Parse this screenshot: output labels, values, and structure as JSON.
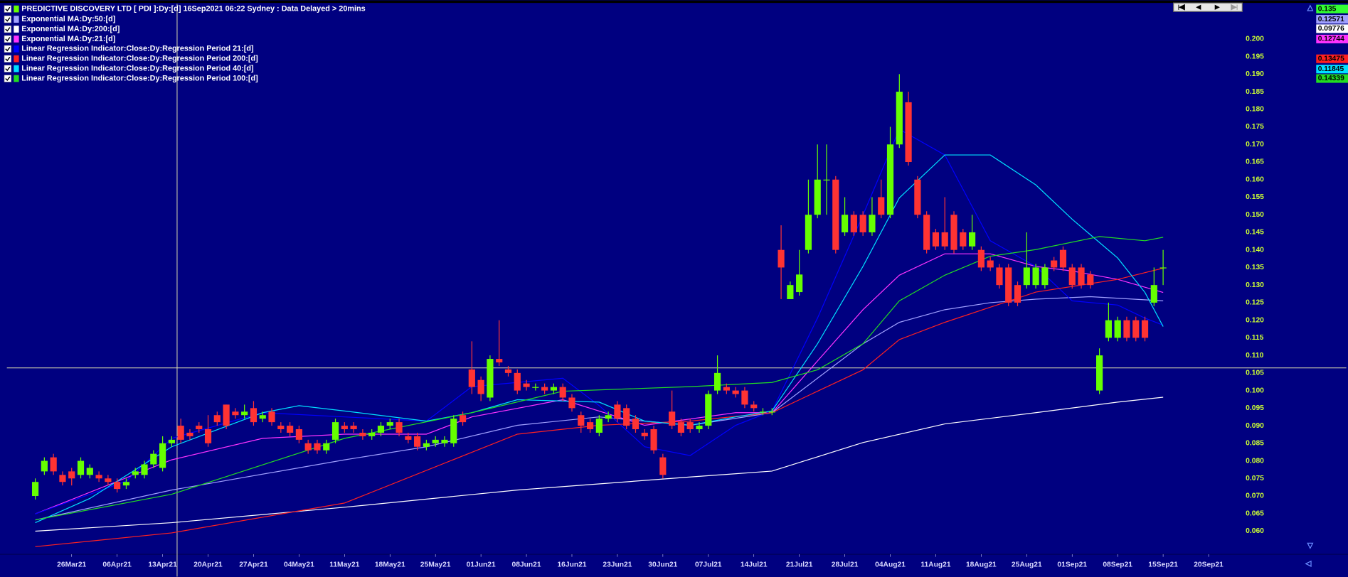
{
  "chart_data": {
    "type": "candlestick",
    "title": "PREDICTIVE DISCOVERY LTD [ PDI ]:Dy:[d] 16Sep2021 06:22 Sydney : Data Delayed > 20mins",
    "title_color": "#66ff00",
    "up_color": "#66ff00",
    "down_color": "#ff3333",
    "open": [
      0.07,
      0.077,
      0.081,
      0.076,
      0.077,
      0.076,
      0.076,
      0.076,
      0.075,
      0.074,
      0.073,
      0.076,
      0.076,
      0.079,
      0.078,
      0.085,
      0.09,
      0.088,
      0.09,
      0.089,
      0.093,
      0.096,
      0.094,
      0.093,
      0.095,
      0.092,
      0.094,
      0.09,
      0.09,
      0.089,
      0.085,
      0.085,
      0.083,
      0.086,
      0.09,
      0.09,
      0.088,
      0.087,
      0.088,
      0.09,
      0.091,
      0.087,
      0.087,
      0.084,
      0.085,
      0.085,
      0.085,
      0.093,
      0.106,
      0.103,
      0.098,
      0.109,
      0.106,
      0.105,
      0.102,
      0.101,
      0.101,
      0.1,
      0.101,
      0.098,
      0.093,
      0.091,
      0.088,
      0.092,
      0.096,
      0.095,
      0.092,
      0.088,
      0.089,
      0.081,
      0.094,
      0.091,
      0.091,
      0.089,
      0.09,
      0.1,
      0.101,
      0.1,
      0.1,
      0.096,
      0.094,
      0.094,
      0.14,
      0.126,
      0.128,
      0.14,
      0.15,
      0.16,
      0.16,
      0.145,
      0.15,
      0.15,
      0.145,
      0.155,
      0.15,
      0.17,
      0.182,
      0.16,
      0.15,
      0.145,
      0.145,
      0.15,
      0.145,
      0.141,
      0.14,
      0.137,
      0.135,
      0.135,
      0.13,
      0.13,
      0.13,
      0.13,
      0.137,
      0.14,
      0.135,
      0.135,
      0.133,
      0.1,
      0.115,
      0.115,
      0.12,
      0.12,
      0.12,
      0.125,
      0.135
    ],
    "high": [
      0.075,
      0.081,
      0.082,
      0.077,
      0.078,
      0.081,
      0.079,
      0.077,
      0.076,
      0.075,
      0.075,
      0.078,
      0.08,
      0.083,
      0.087,
      0.087,
      0.092,
      0.089,
      0.091,
      0.093,
      0.094,
      0.096,
      0.095,
      0.096,
      0.097,
      0.094,
      0.095,
      0.091,
      0.091,
      0.09,
      0.086,
      0.086,
      0.086,
      0.092,
      0.091,
      0.091,
      0.089,
      0.089,
      0.091,
      0.092,
      0.092,
      0.088,
      0.088,
      0.086,
      0.087,
      0.087,
      0.093,
      0.094,
      0.114,
      0.104,
      0.11,
      0.12,
      0.107,
      0.106,
      0.103,
      0.102,
      0.102,
      0.102,
      0.102,
      0.099,
      0.094,
      0.092,
      0.093,
      0.094,
      0.097,
      0.096,
      0.093,
      0.089,
      0.09,
      0.082,
      0.1,
      0.092,
      0.092,
      0.091,
      0.1,
      0.11,
      0.102,
      0.101,
      0.101,
      0.097,
      0.095,
      0.095,
      0.147,
      0.131,
      0.14,
      0.16,
      0.17,
      0.17,
      0.161,
      0.155,
      0.151,
      0.151,
      0.155,
      0.16,
      0.175,
      0.19,
      0.185,
      0.161,
      0.151,
      0.146,
      0.155,
      0.151,
      0.146,
      0.15,
      0.141,
      0.138,
      0.136,
      0.136,
      0.131,
      0.145,
      0.136,
      0.136,
      0.138,
      0.141,
      0.136,
      0.136,
      0.134,
      0.112,
      0.125,
      0.121,
      0.121,
      0.121,
      0.121,
      0.135,
      0.14
    ],
    "low": [
      0.069,
      0.076,
      0.076,
      0.073,
      0.073,
      0.075,
      0.075,
      0.074,
      0.073,
      0.071,
      0.072,
      0.075,
      0.075,
      0.078,
      0.077,
      0.084,
      0.085,
      0.086,
      0.088,
      0.084,
      0.09,
      0.089,
      0.092,
      0.092,
      0.09,
      0.091,
      0.09,
      0.088,
      0.087,
      0.085,
      0.082,
      0.082,
      0.082,
      0.085,
      0.088,
      0.088,
      0.086,
      0.086,
      0.087,
      0.089,
      0.087,
      0.085,
      0.083,
      0.083,
      0.084,
      0.084,
      0.084,
      0.09,
      0.099,
      0.097,
      0.097,
      0.107,
      0.104,
      0.099,
      0.1,
      0.1,
      0.099,
      0.099,
      0.097,
      0.094,
      0.088,
      0.088,
      0.087,
      0.091,
      0.091,
      0.089,
      0.088,
      0.086,
      0.082,
      0.075,
      0.089,
      0.087,
      0.088,
      0.088,
      0.089,
      0.099,
      0.099,
      0.098,
      0.095,
      0.094,
      0.093,
      0.093,
      0.126,
      0.126,
      0.127,
      0.139,
      0.149,
      0.15,
      0.139,
      0.144,
      0.144,
      0.144,
      0.144,
      0.149,
      0.149,
      0.169,
      0.164,
      0.149,
      0.139,
      0.14,
      0.14,
      0.139,
      0.14,
      0.14,
      0.134,
      0.134,
      0.129,
      0.124,
      0.124,
      0.129,
      0.129,
      0.129,
      0.134,
      0.134,
      0.129,
      0.129,
      0.129,
      0.099,
      0.114,
      0.114,
      0.114,
      0.114,
      0.114,
      0.124,
      0.13
    ],
    "close": [
      0.074,
      0.08,
      0.077,
      0.074,
      0.075,
      0.08,
      0.078,
      0.075,
      0.074,
      0.072,
      0.074,
      0.077,
      0.079,
      0.082,
      0.085,
      0.086,
      0.086,
      0.087,
      0.089,
      0.085,
      0.091,
      0.09,
      0.093,
      0.094,
      0.091,
      0.093,
      0.091,
      0.089,
      0.088,
      0.086,
      0.083,
      0.083,
      0.085,
      0.091,
      0.089,
      0.089,
      0.087,
      0.088,
      0.09,
      0.091,
      0.088,
      0.086,
      0.084,
      0.085,
      0.086,
      0.086,
      0.092,
      0.091,
      0.101,
      0.099,
      0.109,
      0.108,
      0.105,
      0.1,
      0.101,
      0.101,
      0.1,
      0.101,
      0.098,
      0.095,
      0.09,
      0.089,
      0.092,
      0.093,
      0.092,
      0.09,
      0.089,
      0.087,
      0.083,
      0.076,
      0.09,
      0.088,
      0.089,
      0.09,
      0.099,
      0.105,
      0.1,
      0.099,
      0.096,
      0.095,
      0.094,
      0.094,
      0.135,
      0.13,
      0.133,
      0.15,
      0.16,
      0.16,
      0.14,
      0.15,
      0.145,
      0.145,
      0.15,
      0.15,
      0.17,
      0.185,
      0.165,
      0.15,
      0.14,
      0.141,
      0.141,
      0.14,
      0.141,
      0.145,
      0.135,
      0.135,
      0.13,
      0.125,
      0.125,
      0.135,
      0.135,
      0.135,
      0.135,
      0.135,
      0.13,
      0.13,
      0.13,
      0.11,
      0.12,
      0.12,
      0.115,
      0.115,
      0.115,
      0.13,
      0.135
    ],
    "series": [
      {
        "name": "Exponential MA:Dy:50:[d]",
        "color": "#a0a0ff",
        "x": [
          0,
          15,
          34,
          43,
          53,
          62,
          72,
          81,
          86,
          91,
          95,
          100,
          105,
          110,
          116,
          124
        ],
        "values": [
          0.0632,
          0.0717,
          0.0803,
          0.084,
          0.0901,
          0.0925,
          0.0901,
          0.0937,
          0.1035,
          0.1133,
          0.1194,
          0.123,
          0.125,
          0.126,
          0.1267,
          0.1255
        ]
      },
      {
        "name": "Exponential MA:Dy:200:[d]",
        "color": "#ffffff",
        "x": [
          0,
          15,
          34,
          53,
          72,
          81,
          91,
          100,
          110,
          119,
          124
        ],
        "values": [
          0.06,
          0.0624,
          0.0668,
          0.0717,
          0.0754,
          0.0771,
          0.0852,
          0.0905,
          0.0937,
          0.0967,
          0.0981
        ]
      },
      {
        "name": "Exponential MA:Dy:21:[d]",
        "color": "#ff33ff",
        "x": [
          0,
          15,
          25,
          34,
          43,
          48,
          58,
          67,
          77,
          81,
          86,
          91,
          95,
          100,
          105,
          110,
          114,
          119,
          124
        ],
        "values": [
          0.0649,
          0.0803,
          0.0864,
          0.0876,
          0.0876,
          0.0925,
          0.0974,
          0.0901,
          0.0937,
          0.0937,
          0.1084,
          0.123,
          0.1328,
          0.1389,
          0.1389,
          0.1353,
          0.134,
          0.1316,
          0.1279
        ]
      },
      {
        "name": "Linear Regression Indicator:Close:Dy:Regression Period 21:[d]",
        "color": "#0000ff",
        "x": [
          0,
          10,
          15,
          25,
          34,
          43,
          48,
          58,
          62,
          67,
          72,
          77,
          81,
          86,
          91,
          95,
          100,
          105,
          110,
          114,
          119,
          122,
          124
        ],
        "values": [
          0.0649,
          0.0742,
          0.0864,
          0.0937,
          0.0925,
          0.0913,
          0.1011,
          0.1035,
          0.0957,
          0.084,
          0.0815,
          0.0901,
          0.0942,
          0.1206,
          0.1499,
          0.1743,
          0.167,
          0.1426,
          0.1353,
          0.1255,
          0.1243,
          0.1206,
          0.1186
        ]
      },
      {
        "name": "Linear Regression Indicator:Close:Dy:Regression Period 200:[d]",
        "color": "#ff2020",
        "x": [
          0,
          15,
          34,
          53,
          62,
          72,
          81,
          86,
          91,
          95,
          100,
          110,
          119,
          124
        ],
        "values": [
          0.0556,
          0.0595,
          0.068,
          0.0876,
          0.0901,
          0.0913,
          0.0937,
          0.0998,
          0.1059,
          0.1145,
          0.1194,
          0.128,
          0.1316,
          0.1348
        ]
      },
      {
        "name": "Linear Regression Indicator:Close:Dy:Regression Period 40:[d]",
        "color": "#00e0ff",
        "x": [
          0,
          6,
          15,
          25,
          29,
          34,
          43,
          48,
          53,
          62,
          67,
          72,
          77,
          81,
          86,
          91,
          95,
          100,
          105,
          110,
          114,
          119,
          122,
          124
        ],
        "values": [
          0.0624,
          0.0693,
          0.084,
          0.0937,
          0.0957,
          0.0942,
          0.0913,
          0.0937,
          0.0974,
          0.0967,
          0.0913,
          0.0901,
          0.0925,
          0.0942,
          0.1133,
          0.1353,
          0.1548,
          0.167,
          0.167,
          0.1585,
          0.1487,
          0.1377,
          0.1279,
          0.1182
        ]
      },
      {
        "name": "Linear Regression Indicator:Close:Dy:Regression Period 100:[d]",
        "color": "#22dd22",
        "x": [
          0,
          15,
          34,
          48,
          58,
          72,
          81,
          86,
          91,
          95,
          100,
          105,
          110,
          117,
          122,
          124
        ],
        "values": [
          0.0632,
          0.0705,
          0.0864,
          0.0937,
          0.0998,
          0.1011,
          0.1023,
          0.1059,
          0.1133,
          0.1255,
          0.1328,
          0.1382,
          0.1401,
          0.1438,
          0.1426,
          0.1436
        ]
      }
    ],
    "last_labels": [
      {
        "label": "0.135",
        "color": "#33ff33"
      },
      {
        "label": "0.12571",
        "color": "#a0a0ff"
      },
      {
        "label": "0.09776",
        "color": "#ffffff"
      },
      {
        "label": "0.12744",
        "color": "#ff33ff"
      },
      {
        "label": "0.13475",
        "color": "#ff2020"
      },
      {
        "label": "0.11845",
        "color": "#00e0ff"
      },
      {
        "label": "0.14339",
        "color": "#22dd22"
      }
    ],
    "xlim": [
      -3.5,
      132.7
    ],
    "xticks": [
      {
        "value": 4,
        "label": "26Mar21"
      },
      {
        "value": 9,
        "label": "06Apr21"
      },
      {
        "value": 14,
        "label": "13Apr21"
      },
      {
        "value": 19,
        "label": "20Apr21"
      },
      {
        "value": 24,
        "label": "27Apr21"
      },
      {
        "value": 29,
        "label": "04May21"
      },
      {
        "value": 34,
        "label": "11May21"
      },
      {
        "value": 39,
        "label": "18May21"
      },
      {
        "value": 44,
        "label": "25May21"
      },
      {
        "value": 49,
        "label": "01Jun21"
      },
      {
        "value": 54,
        "label": "08Jun21"
      },
      {
        "value": 59,
        "label": "16Jun21"
      },
      {
        "value": 64,
        "label": "23Jun21"
      },
      {
        "value": 69,
        "label": "30Jun21"
      },
      {
        "value": 74,
        "label": "07Jul21"
      },
      {
        "value": 79,
        "label": "14Jul21"
      },
      {
        "value": 84,
        "label": "21Jul21"
      },
      {
        "value": 89,
        "label": "28Jul21"
      },
      {
        "value": 94,
        "label": "04Aug21"
      },
      {
        "value": 99,
        "label": "11Aug21"
      },
      {
        "value": 104,
        "label": "18Aug21"
      },
      {
        "value": 109,
        "label": "25Aug21"
      },
      {
        "value": 114,
        "label": "01Sep21"
      },
      {
        "value": 119,
        "label": "08Sep21"
      },
      {
        "value": 124,
        "label": "15Sep21"
      },
      {
        "value": 129,
        "label": "20Sep21"
      }
    ],
    "ylim": [
      0.05,
      0.21
    ],
    "yticks": [
      {
        "value": 0.06,
        "label": "0.060"
      },
      {
        "value": 0.065,
        "label": "0.065"
      },
      {
        "value": 0.07,
        "label": "0.070"
      },
      {
        "value": 0.075,
        "label": "0.075"
      },
      {
        "value": 0.08,
        "label": "0.080"
      },
      {
        "value": 0.085,
        "label": "0.085"
      },
      {
        "value": 0.09,
        "label": "0.090"
      },
      {
        "value": 0.095,
        "label": "0.095"
      },
      {
        "value": 0.1,
        "label": "0.100"
      },
      {
        "value": 0.105,
        "label": "0.105"
      },
      {
        "value": 0.11,
        "label": "0.110"
      },
      {
        "value": 0.115,
        "label": "0.115"
      },
      {
        "value": 0.12,
        "label": "0.120"
      },
      {
        "value": 0.125,
        "label": "0.125"
      },
      {
        "value": 0.13,
        "label": "0.130"
      },
      {
        "value": 0.135,
        "label": "0.135"
      },
      {
        "value": 0.14,
        "label": "0.140"
      },
      {
        "value": 0.145,
        "label": "0.145"
      },
      {
        "value": 0.15,
        "label": "0.150"
      },
      {
        "value": 0.155,
        "label": "0.155"
      },
      {
        "value": 0.16,
        "label": "0.160"
      },
      {
        "value": 0.165,
        "label": "0.165"
      },
      {
        "value": 0.17,
        "label": "0.170"
      },
      {
        "value": 0.175,
        "label": "0.175"
      },
      {
        "value": 0.18,
        "label": "0.180"
      },
      {
        "value": 0.185,
        "label": "0.185"
      },
      {
        "value": 0.19,
        "label": "0.190"
      },
      {
        "value": 0.195,
        "label": "0.195"
      },
      {
        "value": 0.2,
        "label": "0.200"
      }
    ]
  }
}
